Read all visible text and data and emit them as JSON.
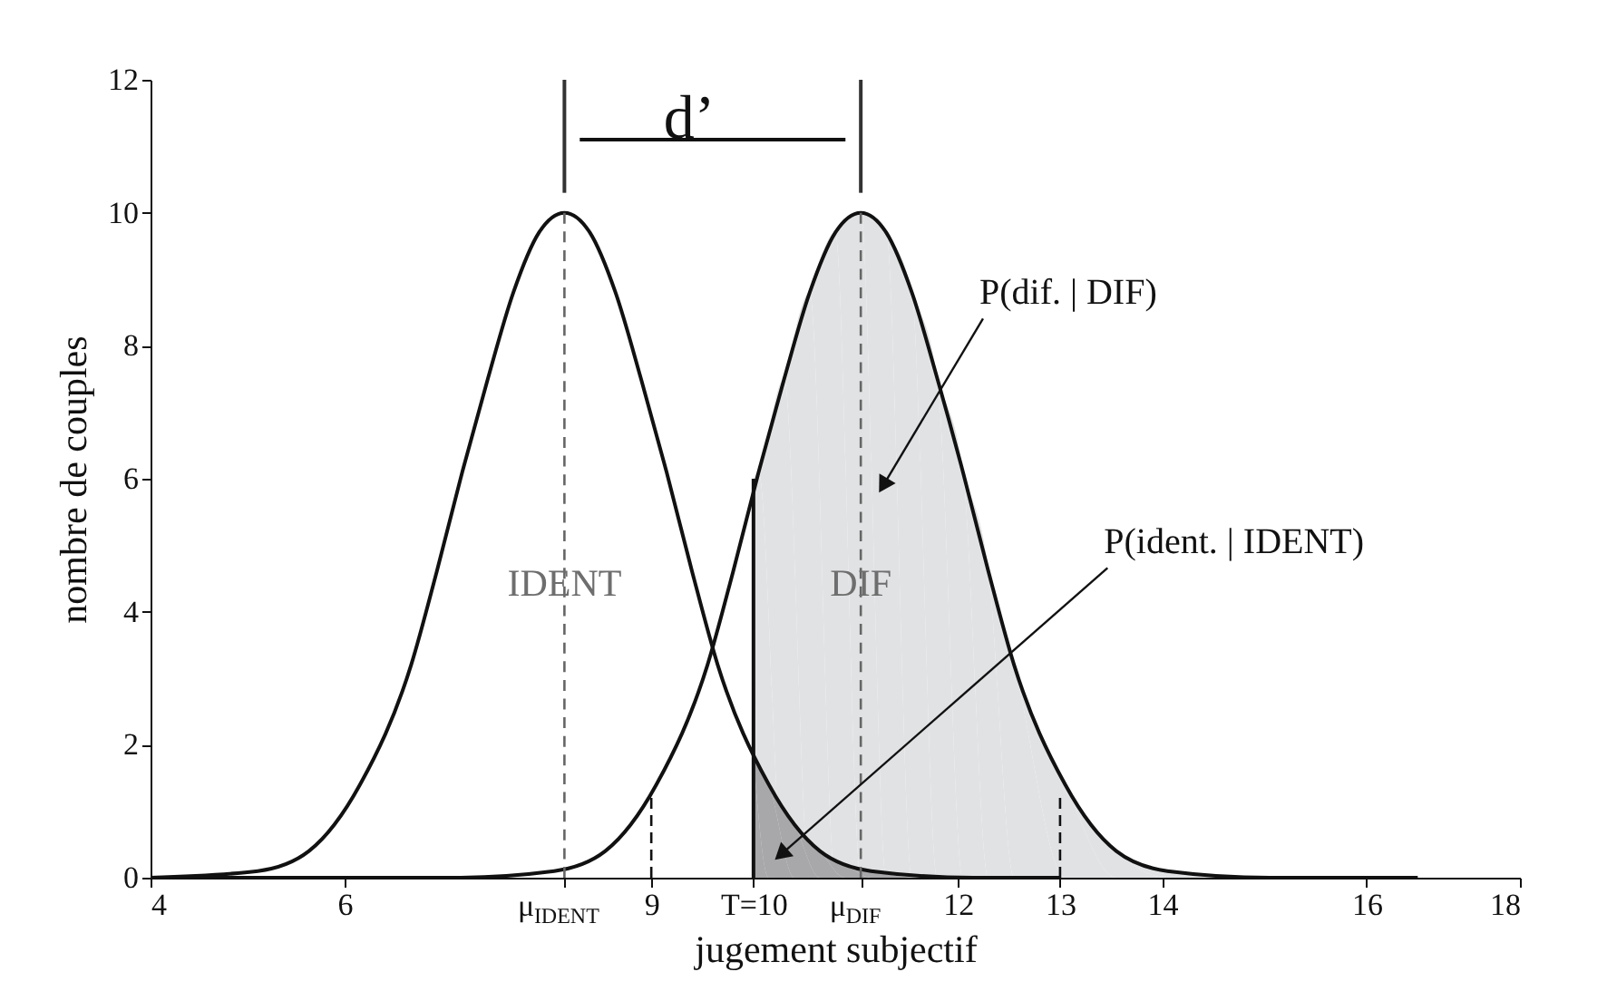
{
  "chart_data": {
    "type": "line",
    "xlabel": "jugement subjectif",
    "ylabel": "nombre de couples",
    "xlim": [
      4.1,
      17.5
    ],
    "ylim": [
      0,
      12
    ],
    "xticks": [
      {
        "value": 4.1,
        "label": "4"
      },
      6,
      {
        "value": 8.15,
        "label": "μ$_{IDENT}$"
      },
      9,
      {
        "value": 10,
        "label": "T=10"
      },
      {
        "value": 11.05,
        "label": "μ$_{DIF}$"
      },
      12,
      13,
      14,
      16,
      {
        "value": 17.5,
        "label": "18"
      }
    ],
    "yticks": [
      0,
      2,
      4,
      6,
      8,
      10,
      12
    ],
    "grid": false,
    "series": [
      {
        "type": "area",
        "color": "#e1e2e4",
        "x": [
          10,
          10.05,
          10.3,
          10.55,
          10.8,
          11.05,
          11.3,
          11.55,
          11.8,
          12.05,
          12.3,
          12.55,
          13.05,
          13.55,
          14.05,
          15.05,
          16.5
        ],
        "values": [
          6.0,
          6.1,
          7.5,
          8.8,
          9.7,
          10,
          9.7,
          8.8,
          7.5,
          6.1,
          4.6,
          3.2,
          1.4,
          0.4,
          0.1,
          0,
          0
        ]
      },
      {
        "type": "area",
        "color": "#a8a8aa",
        "x": [
          10,
          10.15,
          10.4,
          10.65,
          10.9,
          11.15,
          11.65,
          12.15
        ],
        "values": [
          1.8,
          1.4,
          0.8,
          0.4,
          0.2,
          0.1,
          0,
          0
        ]
      },
      {
        "name": "IDENT",
        "color": "#111111",
        "x": [
          4.1,
          5.15,
          5.65,
          6.15,
          6.65,
          6.9,
          7.15,
          7.4,
          7.65,
          7.9,
          8.15,
          8.4,
          8.65,
          8.9,
          9.15,
          9.4,
          9.65,
          10.15,
          10.65,
          11.15,
          12.15,
          13
        ],
        "values": [
          0,
          0.1,
          0.4,
          1.4,
          3.2,
          4.6,
          6.1,
          7.5,
          8.8,
          9.7,
          10,
          9.7,
          8.8,
          7.5,
          6.1,
          4.6,
          3.2,
          1.4,
          0.4,
          0.1,
          0,
          0
        ]
      },
      {
        "name": "DIF",
        "color": "#111111",
        "x": [
          4.1,
          7.05,
          8.05,
          8.55,
          9.05,
          9.55,
          9.8,
          10.05,
          10.3,
          10.55,
          10.8,
          11.05,
          11.3,
          11.55,
          11.8,
          12.05,
          12.3,
          12.55,
          13.05,
          13.55,
          14.05,
          15.05,
          16.5
        ],
        "values": [
          0,
          0,
          0.1,
          0.4,
          1.4,
          3.2,
          4.6,
          6.1,
          7.5,
          8.8,
          9.7,
          10,
          9.7,
          8.8,
          7.5,
          6.1,
          4.6,
          3.2,
          1.4,
          0.4,
          0.1,
          0,
          0
        ]
      },
      {
        "color": "#111111",
        "x": [
          10,
          10
        ],
        "values": [
          0,
          6.0
        ]
      },
      {
        "color": "#666666",
        "line_style": "dashed",
        "x": [
          8.15,
          8.15
        ],
        "values": [
          0,
          10
        ]
      },
      {
        "color": "#666666",
        "line_style": "dashed",
        "x": [
          11.05,
          11.05
        ],
        "values": [
          0,
          10
        ]
      },
      {
        "color": "#111111",
        "line_style": "dashed",
        "x": [
          9,
          9
        ],
        "values": [
          0,
          1.2
        ]
      },
      {
        "color": "#111111",
        "line_style": "dashed",
        "x": [
          13,
          13
        ],
        "values": [
          0,
          1.2
        ]
      },
      {
        "color": "#333333",
        "x": [
          8.15,
          8.15
        ],
        "values": [
          10.3,
          12
        ]
      },
      {
        "color": "#333333",
        "x": [
          11.05,
          11.05
        ],
        "values": [
          10.3,
          12
        ]
      },
      {
        "color": "#111111",
        "x": [
          8.3,
          10.9
        ],
        "values": [
          11.1,
          11.1
        ]
      }
    ],
    "annotations": [
      "d’",
      {
        "text": "P(dif. | DIF)",
        "x": 11.27,
        "y": 5.9
      },
      {
        "text": "P(ident. | IDENT)",
        "x": 10.27,
        "y": 0.35
      }
    ]
  }
}
